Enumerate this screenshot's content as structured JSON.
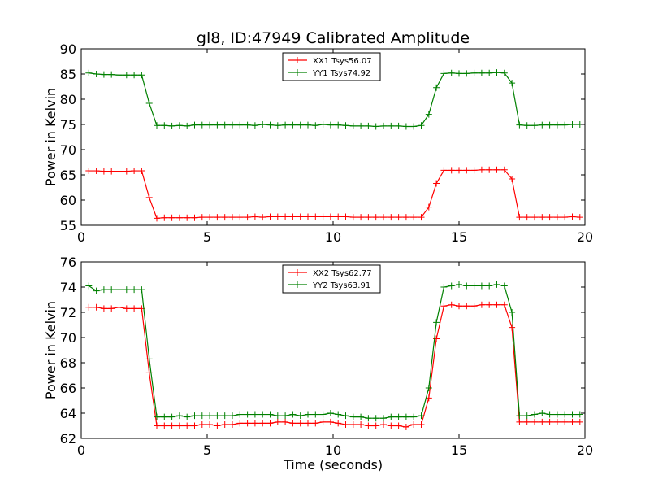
{
  "figure": {
    "title": "gl8, ID:47949 Calibrated Amplitude"
  },
  "colors": {
    "xx": "#ff0000",
    "yy": "#008000"
  },
  "chart_data": [
    {
      "type": "line",
      "title": "gl8, ID:47949 Calibrated Amplitude",
      "xlabel": "",
      "ylabel": "Power in Kelvin",
      "xlim": [
        0,
        20
      ],
      "ylim": [
        55,
        90
      ],
      "xticks": [
        0,
        5,
        10,
        15,
        20
      ],
      "yticks": [
        55,
        60,
        65,
        70,
        75,
        80,
        85,
        90
      ],
      "legend_position": "top-center",
      "x": [
        0.3,
        0.6,
        0.9,
        1.2,
        1.5,
        1.8,
        2.1,
        2.4,
        2.7,
        3.0,
        3.3,
        3.6,
        3.9,
        4.2,
        4.5,
        4.8,
        5.1,
        5.4,
        5.7,
        6.0,
        6.3,
        6.6,
        6.9,
        7.2,
        7.5,
        7.8,
        8.1,
        8.4,
        8.7,
        9.0,
        9.3,
        9.6,
        9.9,
        10.2,
        10.5,
        10.8,
        11.1,
        11.4,
        11.7,
        12.0,
        12.3,
        12.6,
        12.9,
        13.2,
        13.5,
        13.8,
        14.1,
        14.4,
        14.7,
        15.0,
        15.3,
        15.6,
        15.9,
        16.2,
        16.5,
        16.8,
        17.1,
        17.4,
        17.7,
        18.0,
        18.3,
        18.6,
        18.9,
        19.2,
        19.5,
        19.8
      ],
      "series": [
        {
          "name": "XX1 Tsys56.07",
          "color": "#ff0000",
          "values": [
            65.8,
            65.8,
            65.7,
            65.7,
            65.7,
            65.7,
            65.8,
            65.8,
            60.5,
            56.4,
            56.5,
            56.5,
            56.5,
            56.5,
            56.5,
            56.6,
            56.6,
            56.6,
            56.6,
            56.6,
            56.6,
            56.6,
            56.7,
            56.6,
            56.7,
            56.7,
            56.7,
            56.7,
            56.7,
            56.7,
            56.7,
            56.7,
            56.7,
            56.7,
            56.7,
            56.6,
            56.6,
            56.6,
            56.6,
            56.6,
            56.6,
            56.6,
            56.6,
            56.6,
            56.6,
            58.6,
            63.3,
            65.9,
            65.9,
            65.9,
            65.9,
            65.9,
            66.0,
            66.0,
            66.0,
            66.0,
            64.2,
            56.6,
            56.6,
            56.6,
            56.6,
            56.6,
            56.6,
            56.6,
            56.7,
            56.6
          ]
        },
        {
          "name": "YY1 Tsys74.92",
          "color": "#008000",
          "values": [
            85.2,
            85.0,
            84.9,
            84.9,
            84.8,
            84.8,
            84.8,
            84.8,
            79.2,
            74.8,
            74.8,
            74.7,
            74.8,
            74.7,
            74.9,
            74.9,
            74.9,
            74.9,
            74.9,
            74.9,
            74.9,
            74.9,
            74.8,
            75.0,
            74.9,
            74.8,
            74.9,
            74.9,
            74.9,
            74.9,
            74.8,
            75.0,
            74.9,
            74.9,
            74.8,
            74.7,
            74.7,
            74.7,
            74.6,
            74.7,
            74.7,
            74.7,
            74.6,
            74.6,
            74.8,
            77.0,
            82.3,
            85.1,
            85.2,
            85.1,
            85.1,
            85.2,
            85.2,
            85.2,
            85.3,
            85.2,
            83.2,
            74.9,
            74.8,
            74.8,
            74.9,
            74.9,
            74.9,
            74.9,
            75.0,
            75.0
          ]
        }
      ]
    },
    {
      "type": "line",
      "title": "",
      "xlabel": "Time (seconds)",
      "ylabel": "Power in Kelvin",
      "xlim": [
        0,
        20
      ],
      "ylim": [
        62,
        76
      ],
      "xticks": [
        0,
        5,
        10,
        15,
        20
      ],
      "yticks": [
        62,
        64,
        66,
        68,
        70,
        72,
        74,
        76
      ],
      "legend_position": "top-center",
      "x": [
        0.3,
        0.6,
        0.9,
        1.2,
        1.5,
        1.8,
        2.1,
        2.4,
        2.7,
        3.0,
        3.3,
        3.6,
        3.9,
        4.2,
        4.5,
        4.8,
        5.1,
        5.4,
        5.7,
        6.0,
        6.3,
        6.6,
        6.9,
        7.2,
        7.5,
        7.8,
        8.1,
        8.4,
        8.7,
        9.0,
        9.3,
        9.6,
        9.9,
        10.2,
        10.5,
        10.8,
        11.1,
        11.4,
        11.7,
        12.0,
        12.3,
        12.6,
        12.9,
        13.2,
        13.5,
        13.8,
        14.1,
        14.4,
        14.7,
        15.0,
        15.3,
        15.6,
        15.9,
        16.2,
        16.5,
        16.8,
        17.1,
        17.4,
        17.7,
        18.0,
        18.3,
        18.6,
        18.9,
        19.2,
        19.5,
        19.8
      ],
      "series": [
        {
          "name": "XX2 Tsys62.77",
          "color": "#ff0000",
          "values": [
            72.4,
            72.4,
            72.3,
            72.3,
            72.4,
            72.3,
            72.3,
            72.3,
            67.2,
            63.0,
            63.0,
            63.0,
            63.0,
            63.0,
            63.0,
            63.1,
            63.1,
            63.0,
            63.1,
            63.1,
            63.2,
            63.2,
            63.2,
            63.2,
            63.2,
            63.3,
            63.3,
            63.2,
            63.2,
            63.2,
            63.2,
            63.3,
            63.3,
            63.2,
            63.1,
            63.1,
            63.1,
            63.0,
            63.0,
            63.1,
            63.0,
            63.0,
            62.9,
            63.1,
            63.1,
            65.2,
            69.9,
            72.5,
            72.6,
            72.5,
            72.5,
            72.5,
            72.6,
            72.6,
            72.6,
            72.6,
            70.8,
            63.3,
            63.3,
            63.3,
            63.3,
            63.3,
            63.3,
            63.3,
            63.3,
            63.3
          ]
        },
        {
          "name": "YY2 Tsys63.91",
          "color": "#008000",
          "values": [
            74.1,
            73.7,
            73.8,
            73.8,
            73.8,
            73.8,
            73.8,
            73.8,
            68.3,
            63.7,
            63.7,
            63.7,
            63.8,
            63.7,
            63.8,
            63.8,
            63.8,
            63.8,
            63.8,
            63.8,
            63.9,
            63.9,
            63.9,
            63.9,
            63.9,
            63.8,
            63.8,
            63.9,
            63.8,
            63.9,
            63.9,
            63.9,
            64.0,
            63.9,
            63.8,
            63.7,
            63.7,
            63.6,
            63.6,
            63.6,
            63.7,
            63.7,
            63.7,
            63.7,
            63.8,
            66.0,
            71.2,
            74.0,
            74.1,
            74.2,
            74.1,
            74.1,
            74.1,
            74.1,
            74.2,
            74.1,
            72.0,
            63.8,
            63.8,
            63.9,
            64.0,
            63.9,
            63.9,
            63.9,
            63.9,
            63.9
          ]
        }
      ]
    }
  ]
}
